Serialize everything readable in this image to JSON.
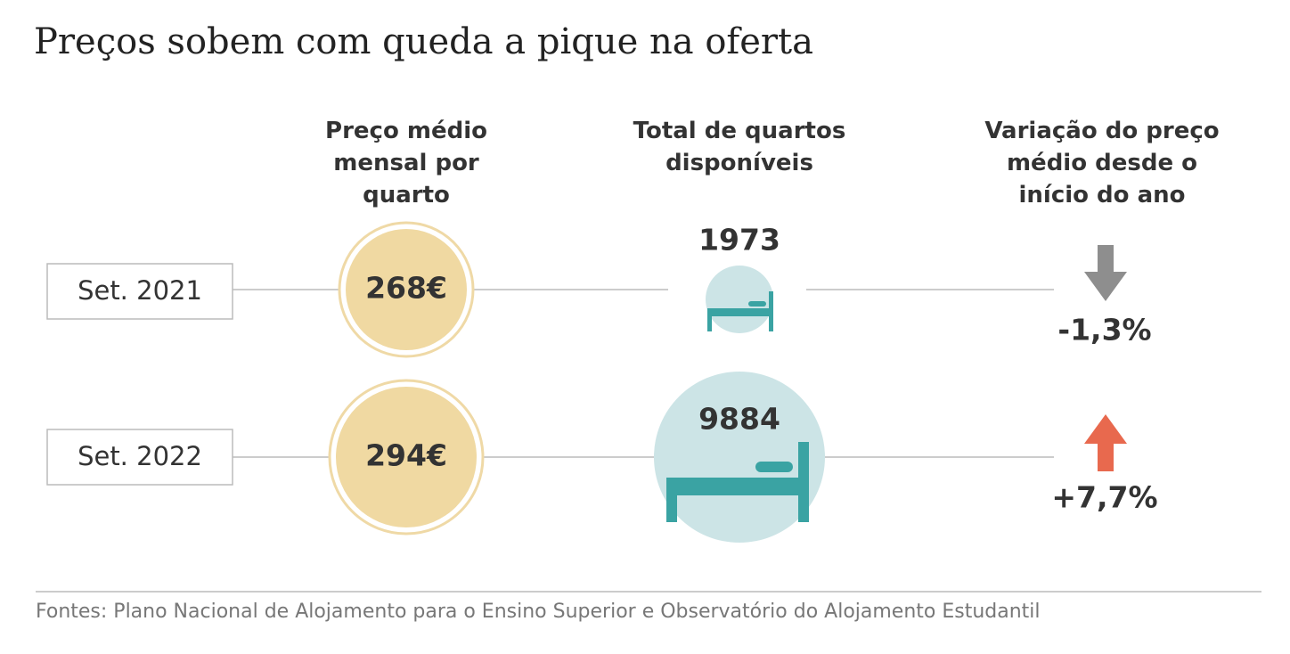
{
  "header": {
    "title": "Preços sobem com queda a pique na oferta"
  },
  "columns": [
    "Preço médio mensal por quarto",
    "Total de quartos disponíveis",
    "Variação do preço médio desde o início do ano"
  ],
  "rows": [
    {
      "label": "Set. 2021",
      "price": "268€",
      "rooms": "1973",
      "change": "-1,3%"
    },
    {
      "label": "Set. 2022",
      "price": "294€",
      "rooms": "9884",
      "change": "+7,7%"
    }
  ],
  "footer": {
    "source": "Fontes: Plano Nacional de Alojamento para o Ensino Superior e Observatório do Alojamento Estudantil"
  }
}
